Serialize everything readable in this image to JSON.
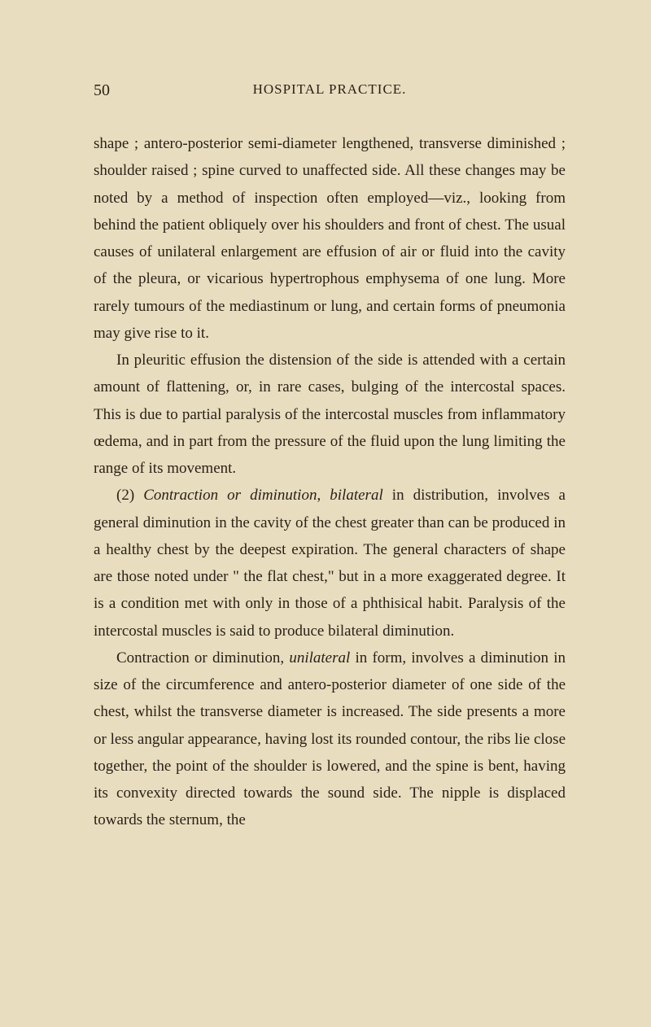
{
  "page_number": "50",
  "header": "HOSPITAL PRACTICE.",
  "paragraphs": {
    "p1": "shape ; antero-posterior semi-diameter lengthened, transverse diminished ; shoulder raised ; spine curved to unaffected side. All these changes may be noted by a method of inspec­tion often employed—viz., looking from behind the patient obliquely over his shoulders and front of chest. The usual causes of unilateral enlargement are effusion of air or fluid into the cavity of the pleura, or vicarious hypertrophous emphysema of one lung. More rarely tumours of the medias­tinum or lung, and certain forms of pneumonia may give rise to it.",
    "p2": "In pleuritic effusion the distension of the side is attended with a certain amount of flattening, or, in rare cases, bulging of the intercostal spaces. This is due to partial paralysis of the intercostal muscles from inflammatory œdema, and in part from the pressure of the fluid upon the lung limiting the range of its movement.",
    "p3_prefix": "(2) ",
    "p3_italic1": "Contraction or diminution",
    "p3_mid1": ", ",
    "p3_italic2": "bilateral",
    "p3_rest": " in distribution, involves a general diminution in the cavity of the chest greater than can be produced in a healthy chest by the deepest expiration. The general characters of shape are those noted under \" the flat chest,\" but in a more exaggerated degree. It is a condition met with only in those of a phthisi­cal habit. Paralysis of the intercostal muscles is said to produce bilateral diminution.",
    "p4_prefix": "Contraction or diminution, ",
    "p4_italic": "unilateral",
    "p4_rest": " in form, involves a diminution in size of the circumference and antero-posterior diameter of one side of the chest, whilst the transverse diameter is increased. The side presents a more or less angular appearance, having lost its rounded contour, the ribs lie close together, the point of the shoulder is lowered, and the spine is bent, having its convexity directed towards the sound side. The nipple is displaced towards the sternum, the"
  },
  "colors": {
    "background": "#e8ddbf",
    "text": "#2a2218"
  },
  "typography": {
    "body_fontsize": 19,
    "header_fontsize": 17,
    "pagenum_fontsize": 20,
    "line_height": 1.75,
    "font_family": "Georgia, Times New Roman, serif"
  }
}
